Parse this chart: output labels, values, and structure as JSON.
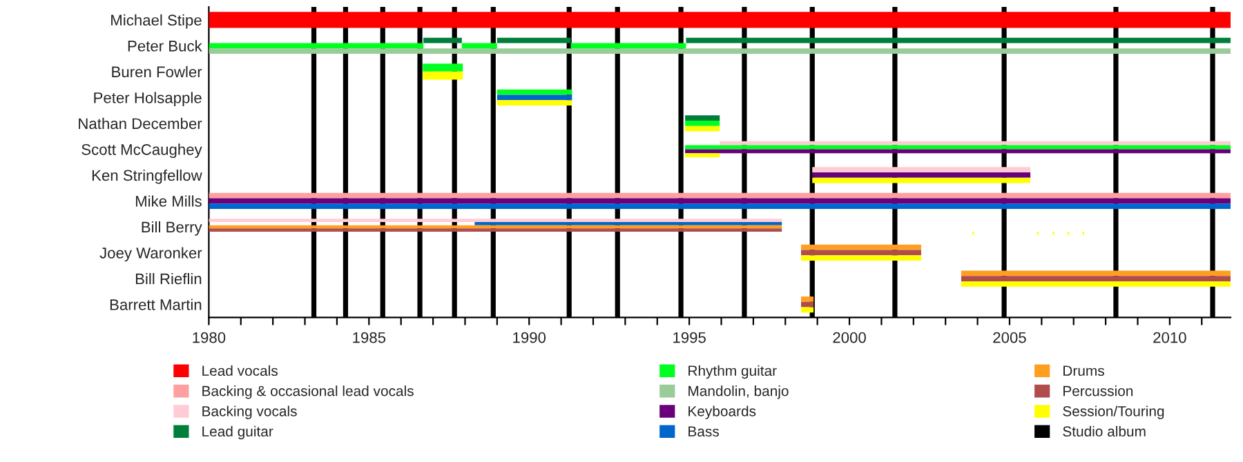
{
  "chart_data": {
    "type": "bar",
    "orientation": "horizontal",
    "categories": [
      "Michael Stipe",
      "Peter Buck",
      "Buren Fowler",
      "Peter Holsapple",
      "Nathan December",
      "Scott McCaughey",
      "Ken Stringfellow",
      "Mike Mills",
      "Bill Berry",
      "Joey Waronker",
      "Bill Rieflin",
      "Barrett Martin"
    ],
    "series": [
      {
        "name": "Lead vocals",
        "color": "#ff0000",
        "base": [
          1980,
          null,
          null,
          null,
          null,
          null,
          null,
          null,
          null,
          null,
          null,
          null
        ],
        "values": [
          31.9,
          null,
          null,
          null,
          null,
          null,
          null,
          null,
          null,
          null,
          null,
          null
        ]
      },
      {
        "name": "Backing & occasional lead vocals",
        "color": "#ffa0a0",
        "base": [
          null,
          null,
          null,
          null,
          null,
          null,
          null,
          1980,
          null,
          null,
          null,
          null
        ],
        "values": [
          null,
          null,
          null,
          null,
          null,
          null,
          null,
          31.9,
          null,
          null,
          null,
          null
        ]
      },
      {
        "name": "Backing vocals",
        "color": "#ffccd5",
        "base": [
          null,
          null,
          null,
          null,
          null,
          1995.95,
          1998.84,
          null,
          1980,
          null,
          null,
          null
        ],
        "values": [
          null,
          null,
          null,
          null,
          null,
          15.95,
          6.81,
          null,
          17.89,
          null,
          null,
          null
        ]
      },
      {
        "name": "Lead guitar",
        "color": "#007f3a",
        "base": [
          null,
          1986.7,
          null,
          null,
          1994.87,
          null,
          null,
          null,
          null,
          null,
          null,
          null
        ],
        "values": [
          null,
          1.2,
          null,
          null,
          1.08,
          null,
          null,
          null,
          null,
          null,
          null,
          null
        ]
      },
      {
        "name": "Rhythm guitar",
        "color": "#00ff20",
        "base": [
          null,
          1980,
          1986.68,
          1989.0,
          1994.87,
          1994.87,
          null,
          null,
          null,
          null,
          null,
          null
        ],
        "values": [
          null,
          6.7,
          1.25,
          2.34,
          1.08,
          17.03,
          null,
          null,
          null,
          null,
          null,
          null
        ]
      },
      {
        "name": "Mandolin, banjo",
        "color": "#99cc99",
        "base": [
          null,
          1980,
          null,
          null,
          null,
          null,
          null,
          null,
          null,
          null,
          null,
          null
        ],
        "values": [
          null,
          31.9,
          null,
          null,
          null,
          null,
          null,
          null,
          null,
          null,
          null,
          null
        ]
      },
      {
        "name": "Keyboards",
        "color": "#6b007b",
        "base": [
          null,
          null,
          null,
          null,
          null,
          1994.87,
          1998.84,
          1980,
          null,
          null,
          null,
          null
        ],
        "values": [
          null,
          null,
          null,
          null,
          null,
          17.03,
          6.81,
          31.9,
          null,
          null,
          null,
          null
        ]
      },
      {
        "name": "Bass",
        "color": "#0066cc",
        "base": [
          null,
          null,
          null,
          1989.0,
          null,
          null,
          null,
          1980,
          1988.3,
          null,
          null,
          null
        ],
        "values": [
          null,
          null,
          null,
          2.34,
          null,
          null,
          null,
          31.9,
          9.59,
          null,
          null,
          null
        ]
      },
      {
        "name": "Drums",
        "color": "#ff9f20",
        "base": [
          null,
          null,
          null,
          null,
          null,
          null,
          null,
          null,
          1980,
          1998.49,
          2003.49,
          1998.49
        ],
        "values": [
          null,
          null,
          null,
          null,
          null,
          null,
          null,
          null,
          17.89,
          3.75,
          8.41,
          0.39
        ]
      },
      {
        "name": "Percussion",
        "color": "#b04c4c",
        "base": [
          null,
          null,
          null,
          null,
          null,
          null,
          null,
          null,
          1980,
          1998.49,
          2003.49,
          1998.49
        ],
        "values": [
          null,
          null,
          null,
          null,
          null,
          null,
          null,
          null,
          17.89,
          3.75,
          8.41,
          0.39
        ]
      },
      {
        "name": "Session/Touring",
        "color": "#ffff00",
        "base": [
          null,
          null,
          1986.68,
          1989.0,
          1994.87,
          1994.87,
          1998.84,
          null,
          2003.84,
          1998.49,
          2003.49,
          1998.49
        ],
        "values": [
          null,
          null,
          1.25,
          2.34,
          1.08,
          1.08,
          6.81,
          null,
          0.05,
          3.75,
          8.41,
          0.39
        ]
      },
      {
        "color": "#007f3a",
        "base": [
          null,
          1989.0,
          null,
          null,
          null,
          null,
          null,
          null,
          null,
          null,
          null,
          null
        ],
        "values": [
          null,
          2.3,
          null,
          null,
          null,
          null,
          null,
          null,
          null,
          null,
          null,
          null
        ]
      },
      {
        "color": "#007f3a",
        "base": [
          null,
          1994.9,
          null,
          null,
          null,
          null,
          null,
          null,
          null,
          null,
          null,
          null
        ],
        "values": [
          null,
          17.0,
          null,
          null,
          null,
          null,
          null,
          null,
          null,
          null,
          null,
          null
        ]
      },
      {
        "color": "#00ff20",
        "base": [
          null,
          1987.9,
          null,
          null,
          null,
          null,
          null,
          null,
          null,
          null,
          null,
          null
        ],
        "values": [
          null,
          1.1,
          null,
          null,
          null,
          null,
          null,
          null,
          null,
          null,
          null,
          null
        ]
      },
      {
        "color": "#00ff20",
        "base": [
          null,
          1991.3,
          null,
          null,
          null,
          null,
          null,
          null,
          null,
          null,
          null,
          null
        ],
        "values": [
          null,
          3.6,
          null,
          null,
          null,
          null,
          null,
          null,
          null,
          null,
          null,
          null
        ]
      },
      {
        "color": "#ffff00",
        "base": [
          null,
          null,
          null,
          null,
          null,
          null,
          null,
          null,
          2005.86,
          null,
          null,
          null
        ],
        "values": [
          null,
          null,
          null,
          null,
          null,
          null,
          null,
          null,
          0.05,
          null,
          null,
          null
        ]
      },
      {
        "color": "#ffff00",
        "base": [
          null,
          null,
          null,
          null,
          null,
          null,
          null,
          null,
          2006.34,
          null,
          null,
          null
        ],
        "values": [
          null,
          null,
          null,
          null,
          null,
          null,
          null,
          null,
          0.05,
          null,
          null,
          null
        ]
      },
      {
        "color": "#ffff00",
        "base": [
          null,
          null,
          null,
          null,
          null,
          null,
          null,
          null,
          2006.81,
          null,
          null,
          null
        ],
        "values": [
          null,
          null,
          null,
          null,
          null,
          null,
          null,
          null,
          0.05,
          null,
          null,
          null
        ]
      },
      {
        "color": "#ffff00",
        "base": [
          null,
          null,
          null,
          null,
          null,
          null,
          null,
          null,
          2007.28,
          null,
          null,
          null
        ],
        "values": [
          null,
          null,
          null,
          null,
          null,
          null,
          null,
          null,
          0.05,
          null,
          null,
          null
        ]
      }
    ],
    "ref_lines": [
      {
        "axis": "x",
        "value": 1983.28,
        "label": "Studio album",
        "color": "#000000"
      },
      {
        "axis": "x",
        "value": 1984.27,
        "color": "#000000"
      },
      {
        "axis": "x",
        "value": 1985.43,
        "color": "#000000"
      },
      {
        "axis": "x",
        "value": 1986.59,
        "color": "#000000"
      },
      {
        "axis": "x",
        "value": 1987.67,
        "color": "#000000"
      },
      {
        "axis": "x",
        "value": 1988.88,
        "color": "#000000"
      },
      {
        "axis": "x",
        "value": 1991.25,
        "color": "#000000"
      },
      {
        "axis": "x",
        "value": 1992.76,
        "color": "#000000"
      },
      {
        "axis": "x",
        "value": 1994.74,
        "color": "#000000"
      },
      {
        "axis": "x",
        "value": 1996.72,
        "color": "#000000"
      },
      {
        "axis": "x",
        "value": 1998.84,
        "color": "#000000"
      },
      {
        "axis": "x",
        "value": 2001.42,
        "color": "#000000"
      },
      {
        "axis": "x",
        "value": 2004.83,
        "color": "#000000"
      },
      {
        "axis": "x",
        "value": 2008.32,
        "color": "#000000"
      },
      {
        "axis": "x",
        "value": 2011.34,
        "color": "#000000"
      }
    ],
    "xlim": [
      1980,
      2011.9
    ],
    "xticks": [
      1980,
      {
        "value": 1981,
        "label": null
      },
      {
        "value": 1982,
        "label": null
      },
      {
        "value": 1983,
        "label": null
      },
      {
        "value": 1984,
        "label": null
      },
      1985,
      {
        "value": 1986,
        "label": null
      },
      {
        "value": 1987,
        "label": null
      },
      {
        "value": 1988,
        "label": null
      },
      {
        "value": 1989,
        "label": null
      },
      1990,
      {
        "value": 1991,
        "label": null
      },
      {
        "value": 1992,
        "label": null
      },
      {
        "value": 1993,
        "label": null
      },
      {
        "value": 1994,
        "label": null
      },
      1995,
      {
        "value": 1996,
        "label": null
      },
      {
        "value": 1997,
        "label": null
      },
      {
        "value": 1998,
        "label": null
      },
      {
        "value": 1999,
        "label": null
      },
      2000,
      {
        "value": 2001,
        "label": null
      },
      {
        "value": 2002,
        "label": null
      },
      {
        "value": 2003,
        "label": null
      },
      {
        "value": 2004,
        "label": null
      },
      2005,
      {
        "value": 2006,
        "label": null
      },
      {
        "value": 2007,
        "label": null
      },
      {
        "value": 2008,
        "label": null
      },
      {
        "value": 2009,
        "label": null
      },
      2010,
      {
        "value": 2011,
        "label": null
      }
    ],
    "grid": false,
    "legend": "bottom"
  }
}
